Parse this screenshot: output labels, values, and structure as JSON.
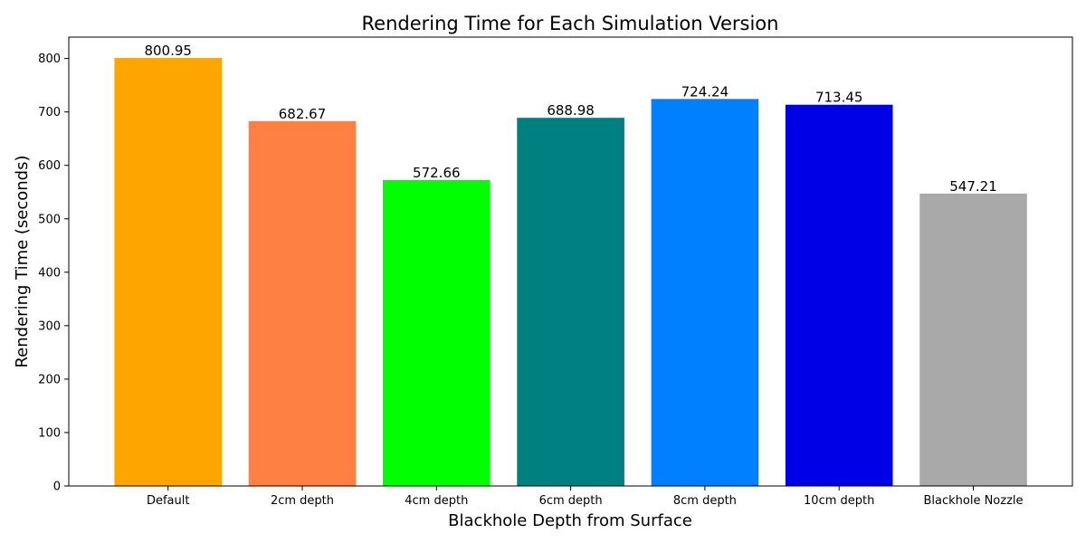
{
  "chart_data": {
    "type": "bar",
    "title": "Rendering Time for Each Simulation Version",
    "xlabel": "Blackhole Depth from Surface",
    "ylabel": "Rendering Time (seconds)",
    "categories": [
      "Default",
      "2cm depth",
      "4cm depth",
      "6cm depth",
      "8cm depth",
      "10cm depth",
      "Blackhole Nozzle"
    ],
    "values": [
      800.95,
      682.67,
      572.66,
      688.98,
      724.24,
      713.45,
      547.21
    ],
    "value_labels": [
      "800.95",
      "682.67",
      "572.66",
      "688.98",
      "724.24",
      "713.45",
      "547.21"
    ],
    "colors": [
      "#FFA500",
      "#FF8042",
      "#00FF00",
      "#008080",
      "#007FFF",
      "#0000E6",
      "#A9A9A9"
    ],
    "ylim": [
      0,
      840
    ],
    "yticks": [
      0,
      100,
      200,
      300,
      400,
      500,
      600,
      700,
      800
    ],
    "grid": false,
    "legend": "none"
  }
}
